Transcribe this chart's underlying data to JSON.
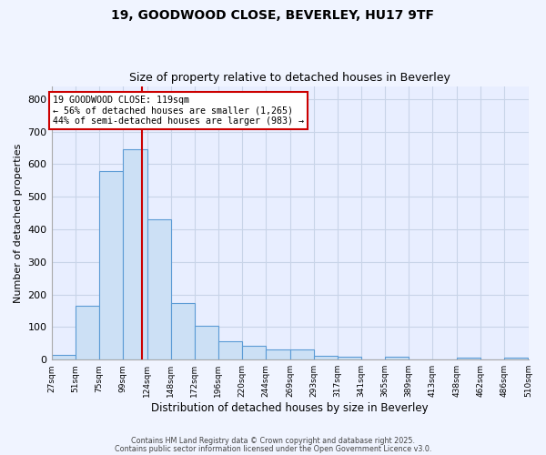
{
  "title_line1": "19, GOODWOOD CLOSE, BEVERLEY, HU17 9TF",
  "title_line2": "Size of property relative to detached houses in Beverley",
  "xlabel": "Distribution of detached houses by size in Beverley",
  "ylabel": "Number of detached properties",
  "bin_edges": [
    27,
    51,
    75,
    99,
    124,
    148,
    172,
    196,
    220,
    244,
    269,
    293,
    317,
    341,
    365,
    389,
    413,
    438,
    462,
    486,
    510
  ],
  "bar_heights": [
    15,
    165,
    580,
    645,
    430,
    175,
    105,
    57,
    42,
    30,
    30,
    12,
    10,
    0,
    8,
    0,
    0,
    5,
    0,
    5
  ],
  "bar_color": "#cce0f5",
  "bar_edgecolor": "#5b9bd5",
  "property_size": 119,
  "vline_color": "#cc0000",
  "annotation_line1": "19 GOODWOOD CLOSE: 119sqm",
  "annotation_line2": "← 56% of detached houses are smaller (1,265)",
  "annotation_line3": "44% of semi-detached houses are larger (983) →",
  "annotation_box_facecolor": "#ffffff",
  "annotation_box_edgecolor": "#cc0000",
  "ylim": [
    0,
    840
  ],
  "yticks": [
    0,
    100,
    200,
    300,
    400,
    500,
    600,
    700,
    800
  ],
  "plot_bg_color": "#e8eeff",
  "fig_bg_color": "#f0f4ff",
  "grid_color": "#c8d4e8",
  "footnote1": "Contains HM Land Registry data © Crown copyright and database right 2025.",
  "footnote2": "Contains public sector information licensed under the Open Government Licence v3.0."
}
